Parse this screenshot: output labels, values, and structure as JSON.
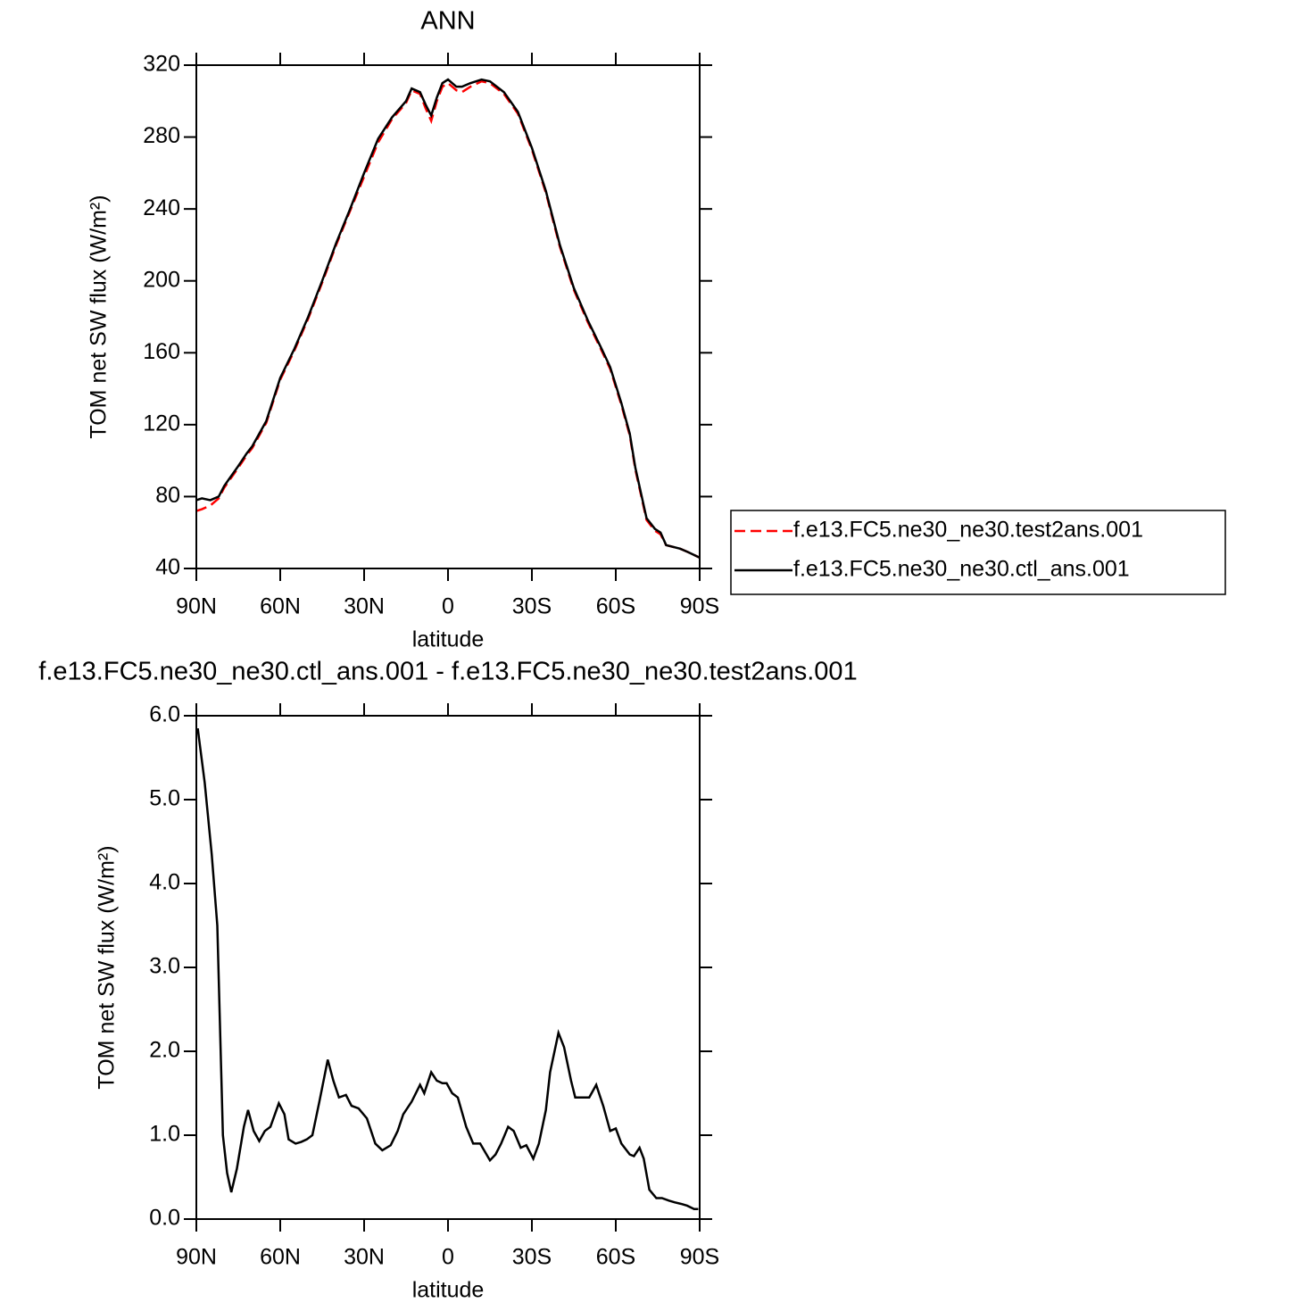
{
  "chart_data": [
    {
      "type": "line",
      "title": "ANN",
      "x_label": "latitude",
      "y_label": "TOM net SW flux (W/m²)",
      "x": [
        90,
        88,
        85,
        82,
        80,
        75,
        72,
        70,
        65,
        60,
        55,
        50,
        45,
        40,
        35,
        30,
        25,
        20,
        15,
        13,
        10,
        8,
        6,
        4,
        2,
        0,
        -3,
        -5,
        -8,
        -12,
        -15,
        -20,
        -25,
        -30,
        -35,
        -40,
        -45,
        -50,
        -55,
        -58,
        -62,
        -65,
        -67,
        -71,
        -74,
        -76,
        -78,
        -83,
        -86,
        -90
      ],
      "series": [
        {
          "name": "f.e13.FC5.ne30_ne30.test2ans.001",
          "color": "#ff0000",
          "line_style": "dashed",
          "values": [
            72,
            73,
            75,
            79,
            85,
            96,
            103,
            107,
            121,
            145,
            161,
            179,
            199,
            220,
            239,
            258,
            277,
            290,
            299,
            306,
            304,
            296,
            289,
            300,
            308,
            310,
            306,
            305,
            308,
            311,
            310,
            304,
            293,
            273,
            249,
            219,
            195,
            177,
            161,
            151,
            131,
            114,
            95,
            67,
            61,
            59,
            53,
            51,
            49,
            46
          ]
        },
        {
          "name": "f.e13.FC5.ne30_ne30.ctl_ans.001",
          "color": "#000000",
          "line_style": "solid",
          "values": [
            78,
            79,
            78,
            80,
            86,
            97,
            104,
            108,
            122,
            146,
            162,
            180,
            200,
            221,
            240,
            260,
            279,
            291,
            300,
            307,
            305,
            298,
            292,
            302,
            310,
            312,
            308,
            308,
            310,
            312,
            311,
            305,
            294,
            274,
            250,
            220,
            196,
            178,
            162,
            152,
            132,
            115,
            96,
            68,
            62,
            60,
            53,
            51,
            49,
            46
          ]
        }
      ],
      "xlim": [
        90,
        -90
      ],
      "xticks": [
        {
          "value": 90,
          "label": "90N"
        },
        {
          "value": 60,
          "label": "60N"
        },
        {
          "value": 30,
          "label": "30N"
        },
        0,
        {
          "value": -30,
          "label": "30S"
        },
        {
          "value": -60,
          "label": "60S"
        },
        {
          "value": -90,
          "label": "90S"
        }
      ],
      "ylim": [
        40,
        320
      ],
      "yticks": [
        40,
        80,
        120,
        160,
        200,
        240,
        280,
        320
      ],
      "legend": "right"
    },
    {
      "type": "line",
      "title": "f.e13.FC5.ne30_ne30.ctl_ans.001 - f.e13.FC5.ne30_ne30.test2ans.001",
      "x_label": "latitude",
      "y_label": "TOM net SW flux (W/m²)",
      "x": [
        89.5,
        87,
        84.5,
        82.5,
        80.5,
        79,
        77.5,
        75.5,
        73,
        71.5,
        69.5,
        67.5,
        65.5,
        63.5,
        60.5,
        58.5,
        57,
        54.5,
        52.5,
        50.5,
        48.5,
        46,
        43,
        41,
        39,
        36.5,
        34.5,
        32,
        29,
        26,
        23.5,
        20.5,
        18,
        16,
        13,
        10,
        8.5,
        6,
        4,
        2,
        0.5,
        -1.5,
        -3.5,
        -6.5,
        -9,
        -11.5,
        -15,
        -17,
        -19,
        -21.5,
        -23.5,
        -26,
        -28,
        -30.5,
        -32.5,
        -35,
        -36.5,
        -39.5,
        -41.5,
        -44,
        -45.5,
        -48,
        -50.5,
        -53,
        -55.5,
        -58,
        -60,
        -62,
        -65,
        -66.5,
        -68.5,
        -70,
        -72,
        -74.5,
        -76.5,
        -79,
        -81,
        -83.5,
        -85.5,
        -88,
        -89.5
      ],
      "series": [
        {
          "color": "#000000",
          "line_style": "solid",
          "values": [
            5.85,
            5.2,
            4.35,
            3.5,
            1.0,
            0.55,
            0.32,
            0.6,
            1.1,
            1.3,
            1.05,
            0.93,
            1.05,
            1.1,
            1.38,
            1.25,
            0.95,
            0.9,
            0.92,
            0.95,
            1.0,
            1.4,
            1.9,
            1.65,
            1.45,
            1.48,
            1.35,
            1.32,
            1.2,
            0.9,
            0.82,
            0.88,
            1.05,
            1.25,
            1.4,
            1.6,
            1.5,
            1.75,
            1.65,
            1.62,
            1.62,
            1.5,
            1.45,
            1.1,
            0.9,
            0.9,
            0.7,
            0.77,
            0.9,
            1.1,
            1.05,
            0.85,
            0.88,
            0.72,
            0.9,
            1.3,
            1.75,
            2.22,
            2.05,
            1.65,
            1.45,
            1.45,
            1.45,
            1.6,
            1.35,
            1.05,
            1.08,
            0.9,
            0.77,
            0.75,
            0.85,
            0.72,
            0.35,
            0.25,
            0.25,
            0.22,
            0.2,
            0.18,
            0.16,
            0.12,
            0.12
          ]
        }
      ],
      "xlim": [
        90,
        -90
      ],
      "xticks": [
        {
          "value": 90,
          "label": "90N"
        },
        {
          "value": 60,
          "label": "60N"
        },
        {
          "value": 30,
          "label": "30N"
        },
        0,
        {
          "value": -30,
          "label": "30S"
        },
        {
          "value": -60,
          "label": "60S"
        },
        {
          "value": -90,
          "label": "90S"
        }
      ],
      "ylim": [
        0,
        6
      ],
      "yticks": [
        {
          "value": 0,
          "label": "0.0"
        },
        {
          "value": 1,
          "label": "1.0"
        },
        {
          "value": 2,
          "label": "2.0"
        },
        {
          "value": 3,
          "label": "3.0"
        },
        {
          "value": 4,
          "label": "4.0"
        },
        {
          "value": 5,
          "label": "5.0"
        },
        {
          "value": 6,
          "label": "6.0"
        }
      ]
    }
  ]
}
